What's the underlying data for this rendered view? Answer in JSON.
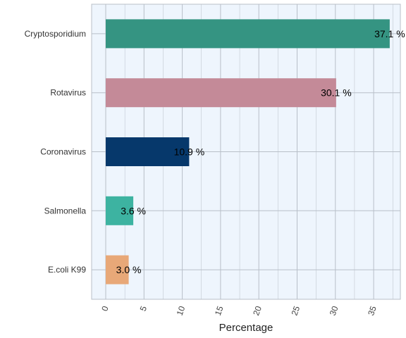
{
  "chart_data": {
    "type": "bar",
    "orientation": "horizontal",
    "categories": [
      "Cryptosporidium",
      "Rotavirus",
      "Coronavirus",
      "Salmonella",
      "E.coli K99"
    ],
    "values": [
      37.1,
      30.1,
      10.9,
      3.6,
      3.0
    ],
    "data_labels": [
      "37.1 %",
      "30.1 %",
      "10.9 %",
      "3.6 %",
      "3.0 %"
    ],
    "colors": [
      "#359482",
      "#c48a98",
      "#06386b",
      "#3db3a1",
      "#e8a878"
    ],
    "xlabel": "Percentage",
    "ylabel": "",
    "title": "",
    "xlim": [
      -2,
      38
    ],
    "xticks": [
      0,
      5,
      10,
      15,
      20,
      25,
      30,
      35
    ],
    "grid": true,
    "panel_background": "#eef5fd",
    "grid_color": "#b8bfc8"
  }
}
